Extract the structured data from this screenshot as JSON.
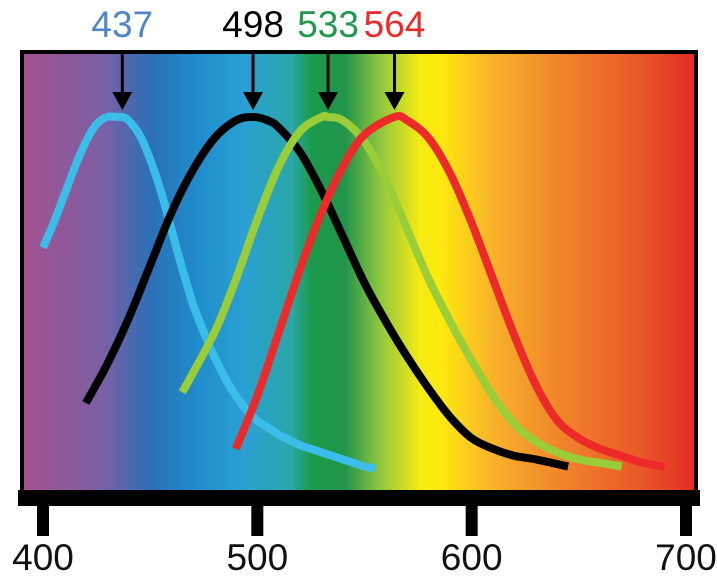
{
  "chart_data": {
    "type": "line",
    "title": "",
    "xlabel": "",
    "ylabel": "",
    "xlim": [
      400,
      700
    ],
    "ylim": [
      0,
      1
    ],
    "xticks": [
      400,
      500,
      600,
      700
    ],
    "tick_labels": [
      "400",
      "500",
      "600",
      "700"
    ],
    "grid": false,
    "legend": "none",
    "background": "visible light spectrum gradient from violet (400) to red (700)",
    "series": [
      {
        "peak": "437",
        "color": "#3bbdea",
        "x": [
          400,
          405,
          410,
          415,
          420,
          425,
          430,
          435,
          437,
          440,
          445,
          450,
          455,
          460,
          465,
          470,
          475,
          480,
          485,
          490,
          495,
          500,
          505,
          510,
          515,
          520,
          525,
          530,
          535,
          540,
          545,
          550,
          555
        ],
        "y": [
          0.63,
          0.7,
          0.78,
          0.86,
          0.93,
          0.98,
          1.0,
          1.0,
          1.0,
          0.99,
          0.95,
          0.88,
          0.79,
          0.68,
          0.57,
          0.47,
          0.39,
          0.32,
          0.26,
          0.21,
          0.17,
          0.14,
          0.12,
          0.1,
          0.085,
          0.07,
          0.06,
          0.05,
          0.04,
          0.03,
          0.02,
          0.01,
          0.005
        ]
      },
      {
        "peak": "498",
        "color": "#000000",
        "x": [
          420,
          430,
          440,
          450,
          460,
          470,
          480,
          490,
          498,
          505,
          510,
          520,
          530,
          540,
          550,
          560,
          570,
          580,
          590,
          600,
          610,
          620,
          630,
          645
        ],
        "y": [
          0.19,
          0.3,
          0.43,
          0.58,
          0.73,
          0.85,
          0.94,
          0.99,
          1.0,
          0.99,
          0.97,
          0.9,
          0.79,
          0.66,
          0.53,
          0.42,
          0.32,
          0.23,
          0.15,
          0.09,
          0.06,
          0.04,
          0.03,
          0.01
        ]
      },
      {
        "peak": "533",
        "color": "#9acd38",
        "x": [
          465,
          480,
          490,
          500,
          510,
          520,
          530,
          533,
          540,
          550,
          560,
          570,
          580,
          590,
          600,
          610,
          620,
          630,
          640,
          650,
          660,
          670
        ],
        "y": [
          0.22,
          0.39,
          0.54,
          0.71,
          0.86,
          0.96,
          1.0,
          1.0,
          0.99,
          0.93,
          0.82,
          0.68,
          0.54,
          0.42,
          0.31,
          0.21,
          0.13,
          0.08,
          0.05,
          0.03,
          0.02,
          0.01
        ]
      },
      {
        "peak": "564",
        "color": "#ec2a2a",
        "x": [
          490,
          500,
          510,
          520,
          530,
          540,
          550,
          564,
          570,
          580,
          590,
          600,
          610,
          620,
          630,
          640,
          650,
          660,
          670,
          680,
          690
        ],
        "y": [
          0.06,
          0.21,
          0.39,
          0.57,
          0.73,
          0.86,
          0.95,
          1.0,
          0.99,
          0.94,
          0.84,
          0.7,
          0.54,
          0.38,
          0.24,
          0.14,
          0.09,
          0.06,
          0.04,
          0.02,
          0.01
        ]
      }
    ]
  }
}
